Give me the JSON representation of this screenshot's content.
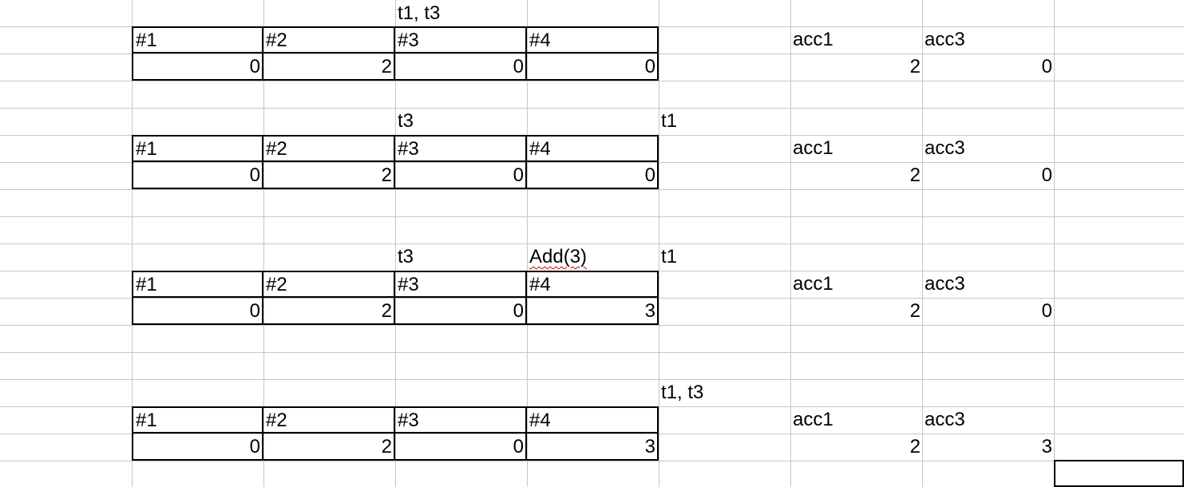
{
  "sheet": {
    "blocks": [
      {
        "label_c": "t1, t3",
        "label_d": "",
        "label_e": "",
        "headers": [
          "#1",
          "#2",
          "#3",
          "#4"
        ],
        "values": [
          "0",
          "2",
          "0",
          "0"
        ],
        "acc_headers": [
          "acc1",
          "acc3"
        ],
        "acc_values": [
          "2",
          "0"
        ]
      },
      {
        "label_c": "t3",
        "label_d": "",
        "label_e": "t1",
        "headers": [
          "#1",
          "#2",
          "#3",
          "#4"
        ],
        "values": [
          "0",
          "2",
          "0",
          "0"
        ],
        "acc_headers": [
          "acc1",
          "acc3"
        ],
        "acc_values": [
          "2",
          "0"
        ]
      },
      {
        "label_c": "t3",
        "label_d": "Add(3)",
        "label_e": "t1",
        "headers": [
          "#1",
          "#2",
          "#3",
          "#4"
        ],
        "values": [
          "0",
          "2",
          "0",
          "3"
        ],
        "acc_headers": [
          "acc1",
          "acc3"
        ],
        "acc_values": [
          "2",
          "0"
        ]
      },
      {
        "label_c": "",
        "label_d": "",
        "label_e": "t1, t3",
        "headers": [
          "#1",
          "#2",
          "#3",
          "#4"
        ],
        "values": [
          "0",
          "2",
          "0",
          "3"
        ],
        "acc_headers": [
          "acc1",
          "acc3"
        ],
        "acc_values": [
          "2",
          "3"
        ]
      }
    ]
  }
}
